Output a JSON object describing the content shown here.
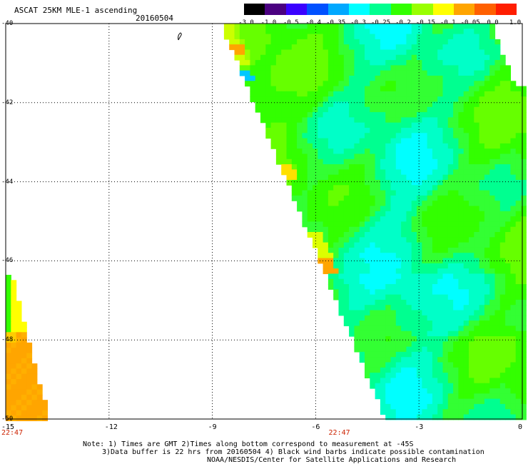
{
  "header": {
    "title": "ASCAT 25KM MLE-1 ascending",
    "date": "20160504"
  },
  "colorbar": {
    "labels": [
      "-3.0",
      "-1.0",
      "-0.5",
      "-0.4",
      "-0.35",
      "-0.3",
      "-0.25",
      "-0.2",
      "-0.15",
      "-0.1",
      "-0.05",
      "0.0",
      "1.0"
    ],
    "colors": [
      "#000000",
      "#4a0080",
      "#3a00ff",
      "#0050ff",
      "#00a8ff",
      "#00ffff",
      "#00ff90",
      "#33ff00",
      "#99ff00",
      "#ffff00",
      "#ffa500",
      "#ff6000",
      "#ff1e00"
    ]
  },
  "map": {
    "lat_labels": [
      "-40",
      "-42",
      "-44",
      "-46",
      "-48",
      "-50"
    ],
    "lon_labels": [
      "-15",
      "-12",
      "-9",
      "-6",
      "-3",
      "0"
    ],
    "times": [
      {
        "label": "22:47",
        "lon": -15
      },
      {
        "label": "22:47",
        "lon": -5.5
      }
    ]
  },
  "footer": {
    "line1": "Note: 1) Times are GMT 2)Times along bottom correspond to measurement at -45S",
    "line2": "3)Data buffer is 22 hrs from 20160504 4) Black wind barbs indicate possible contamination",
    "line3": "NOAA/NESDIS/Center for Satellite Applications and Research"
  }
}
